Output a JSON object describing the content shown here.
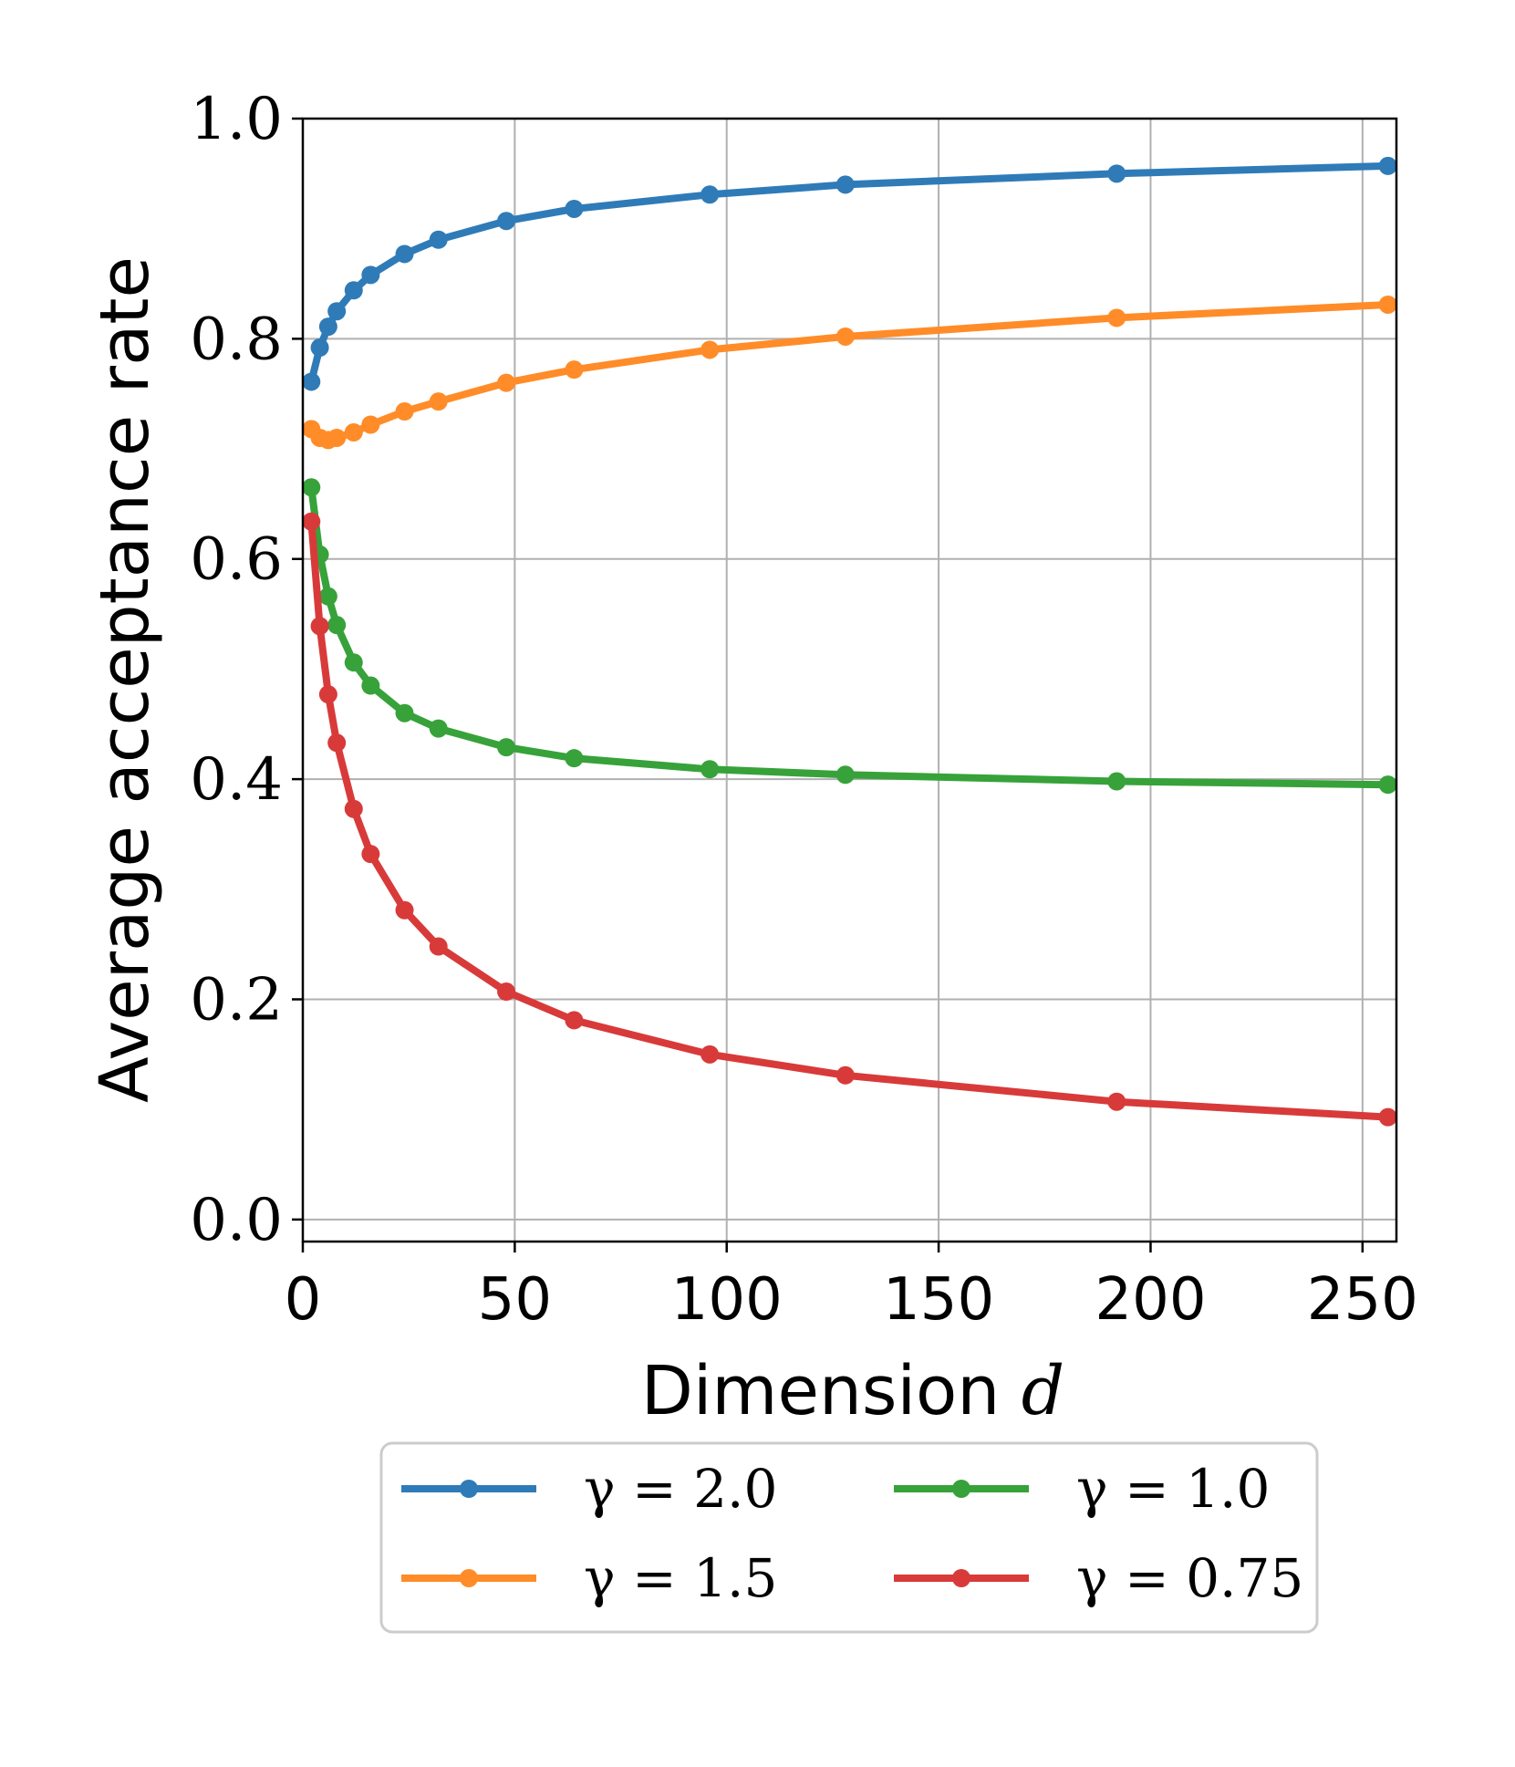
{
  "chart_data": {
    "type": "line",
    "xlabel": "Dimension",
    "xlabel_var": "d",
    "ylabel": "Average acceptance rate",
    "xlim": [
      0,
      258
    ],
    "ylim": [
      -0.02,
      1.0
    ],
    "xticks": [
      0,
      50,
      100,
      150,
      200,
      250
    ],
    "xtick_labels": [
      "0",
      "50",
      "100",
      "150",
      "200",
      "250"
    ],
    "yticks": [
      0.0,
      0.2,
      0.4,
      0.6,
      0.8,
      1.0
    ],
    "ytick_labels": [
      "0.0",
      "0.2",
      "0.4",
      "0.6",
      "0.8",
      "1.0"
    ],
    "grid": true,
    "legend_position": "below",
    "x": [
      2,
      4,
      6,
      8,
      12,
      16,
      24,
      32,
      48,
      64,
      96,
      128,
      192,
      256
    ],
    "series": [
      {
        "name": "γ = 2.0",
        "color": "#2f7bb8",
        "values": [
          0.761,
          0.792,
          0.811,
          0.825,
          0.844,
          0.858,
          0.877,
          0.89,
          0.907,
          0.918,
          0.931,
          0.94,
          0.95,
          0.957
        ]
      },
      {
        "name": "γ = 1.5",
        "color": "#ff8c28",
        "values": [
          0.718,
          0.71,
          0.708,
          0.71,
          0.715,
          0.722,
          0.734,
          0.743,
          0.76,
          0.772,
          0.79,
          0.802,
          0.819,
          0.831
        ]
      },
      {
        "name": "γ = 1.0",
        "color": "#37a23a",
        "values": [
          0.665,
          0.604,
          0.566,
          0.54,
          0.506,
          0.485,
          0.46,
          0.446,
          0.429,
          0.419,
          0.409,
          0.404,
          0.398,
          0.395
        ]
      },
      {
        "name": "γ = 0.75",
        "color": "#d83a3a",
        "values": [
          0.634,
          0.539,
          0.477,
          0.433,
          0.373,
          0.332,
          0.281,
          0.248,
          0.207,
          0.181,
          0.15,
          0.131,
          0.107,
          0.093
        ]
      }
    ]
  }
}
